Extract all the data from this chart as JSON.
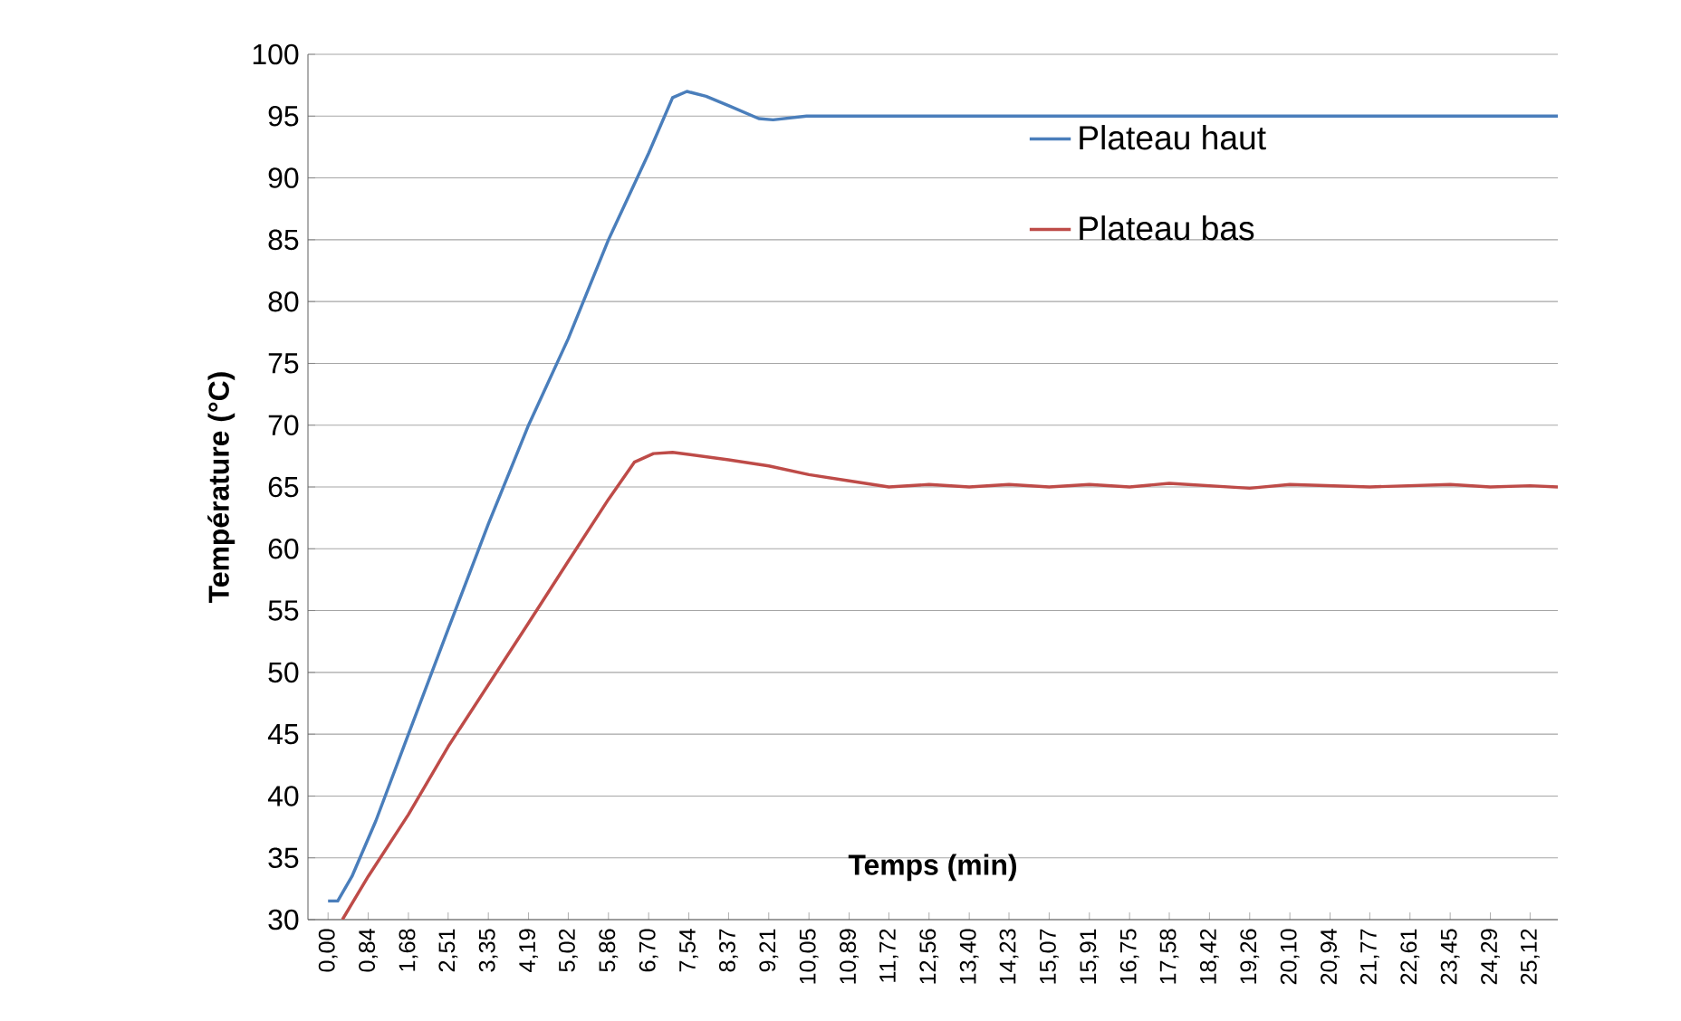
{
  "chart_data": {
    "type": "line",
    "xlabel": "Temps (min)",
    "ylabel": "Température (°C)",
    "xlim": [
      -0.42,
      25.7
    ],
    "ylim": [
      30,
      100
    ],
    "xticks": [
      {
        "value": 0.0,
        "label": "0,00"
      },
      {
        "value": 0.84,
        "label": "0,84"
      },
      {
        "value": 1.68,
        "label": "1,68"
      },
      {
        "value": 2.51,
        "label": "2,51"
      },
      {
        "value": 3.35,
        "label": "3,35"
      },
      {
        "value": 4.19,
        "label": "4,19"
      },
      {
        "value": 5.02,
        "label": "5,02"
      },
      {
        "value": 5.86,
        "label": "5,86"
      },
      {
        "value": 6.7,
        "label": "6,70"
      },
      {
        "value": 7.54,
        "label": "7,54"
      },
      {
        "value": 8.37,
        "label": "8,37"
      },
      {
        "value": 9.21,
        "label": "9,21"
      },
      {
        "value": 10.05,
        "label": "10,05"
      },
      {
        "value": 10.89,
        "label": "10,89"
      },
      {
        "value": 11.72,
        "label": "11,72"
      },
      {
        "value": 12.56,
        "label": "12,56"
      },
      {
        "value": 13.4,
        "label": "13,40"
      },
      {
        "value": 14.23,
        "label": "14,23"
      },
      {
        "value": 15.07,
        "label": "15,07"
      },
      {
        "value": 15.91,
        "label": "15,91"
      },
      {
        "value": 16.75,
        "label": "16,75"
      },
      {
        "value": 17.58,
        "label": "17,58"
      },
      {
        "value": 18.42,
        "label": "18,42"
      },
      {
        "value": 19.26,
        "label": "19,26"
      },
      {
        "value": 20.1,
        "label": "20,10"
      },
      {
        "value": 20.94,
        "label": "20,94"
      },
      {
        "value": 21.77,
        "label": "21,77"
      },
      {
        "value": 22.61,
        "label": "22,61"
      },
      {
        "value": 23.45,
        "label": "23,45"
      },
      {
        "value": 24.29,
        "label": "24,29"
      },
      {
        "value": 25.12,
        "label": "25,12"
      }
    ],
    "yticks": [
      30,
      35,
      40,
      45,
      50,
      55,
      60,
      65,
      70,
      75,
      80,
      85,
      90,
      95,
      100
    ],
    "grid": "y",
    "legend": "top right",
    "series": [
      {
        "name": "Plateau haut",
        "color": "#4a7ebb",
        "x": [
          0,
          0.2,
          0.5,
          1,
          1.68,
          2.51,
          3.35,
          4.19,
          5.02,
          5.86,
          6.7,
          7.2,
          7.5,
          7.9,
          8.4,
          9.0,
          9.3,
          10.0,
          11.0,
          12.5,
          14.0,
          15.5,
          17.0,
          18.5,
          20.0,
          21.5,
          23.0,
          24.5,
          25.7
        ],
        "values": [
          31.5,
          31.5,
          33.5,
          38,
          45,
          53.5,
          62,
          70,
          77,
          85,
          92,
          96.5,
          97,
          96.6,
          95.8,
          94.8,
          94.7,
          95,
          95,
          95,
          95,
          95,
          95,
          95,
          95,
          95,
          95,
          95,
          95
        ]
      },
      {
        "name": "Plateau bas",
        "color": "#be4b48",
        "x": [
          0.3,
          0.84,
          1.68,
          2.51,
          3.35,
          4.19,
          5.02,
          5.86,
          6.4,
          6.8,
          7.2,
          8.37,
          9.21,
          10.05,
          10.89,
          11.72,
          12.56,
          13.4,
          14.23,
          15.07,
          15.91,
          16.75,
          17.58,
          18.42,
          19.26,
          20.1,
          21.77,
          22.61,
          23.45,
          24.29,
          25.12,
          25.7
        ],
        "values": [
          30,
          33.5,
          38.5,
          44,
          49,
          54,
          59,
          64,
          67,
          67.7,
          67.8,
          67.2,
          66.7,
          66,
          65.5,
          65,
          65.2,
          65,
          65.2,
          65,
          65.2,
          65,
          65.3,
          65.1,
          64.9,
          65.2,
          65,
          65.1,
          65.2,
          65,
          65.1,
          65
        ]
      }
    ]
  }
}
